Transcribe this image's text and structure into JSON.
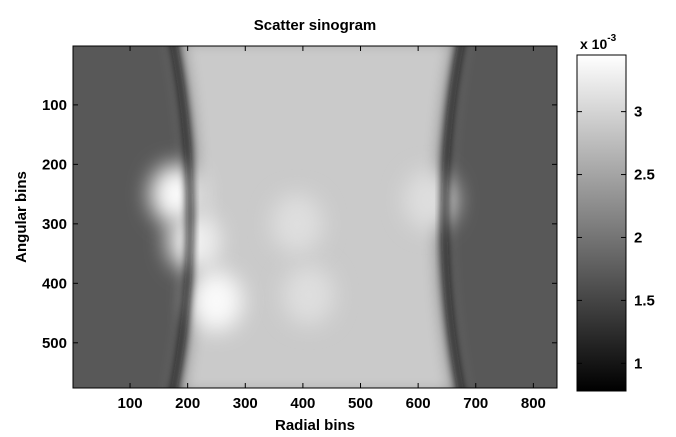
{
  "chart_data": {
    "type": "heatmap",
    "title": "Scatter sinogram",
    "xlabel": "Radial bins",
    "ylabel": "Angular bins",
    "xlim": [
      1,
      841
    ],
    "ylim": [
      1,
      576
    ],
    "y_reversed": true,
    "xticks": [
      100,
      200,
      300,
      400,
      500,
      600,
      700,
      800
    ],
    "yticks": [
      100,
      200,
      300,
      400,
      500
    ],
    "colormap": "gray",
    "colorbar": {
      "clim": [
        0.00078,
        0.00345
      ],
      "ticks": [
        1,
        1.5,
        2,
        2.5,
        3
      ],
      "tick_labels": [
        "1",
        "1.5",
        "2",
        "2.5",
        "3"
      ],
      "exponent_label": "x 10",
      "exponent_power": "-3"
    },
    "estimated_features": {
      "background_value": 0.0017,
      "central_band_value": 0.0029,
      "central_band_x_range": [
        180,
        670
      ],
      "dark_edge_value": 0.0009,
      "peak_value": 0.0034,
      "bright_spots": [
        {
          "x": 180,
          "y": 250,
          "value": 0.0034
        },
        {
          "x": 250,
          "y": 430,
          "value": 0.0034
        },
        {
          "x": 210,
          "y": 330,
          "value": 0.0033
        },
        {
          "x": 620,
          "y": 260,
          "value": 0.0031
        },
        {
          "x": 390,
          "y": 300,
          "value": 0.0031
        },
        {
          "x": 410,
          "y": 420,
          "value": 0.0031
        }
      ]
    }
  }
}
